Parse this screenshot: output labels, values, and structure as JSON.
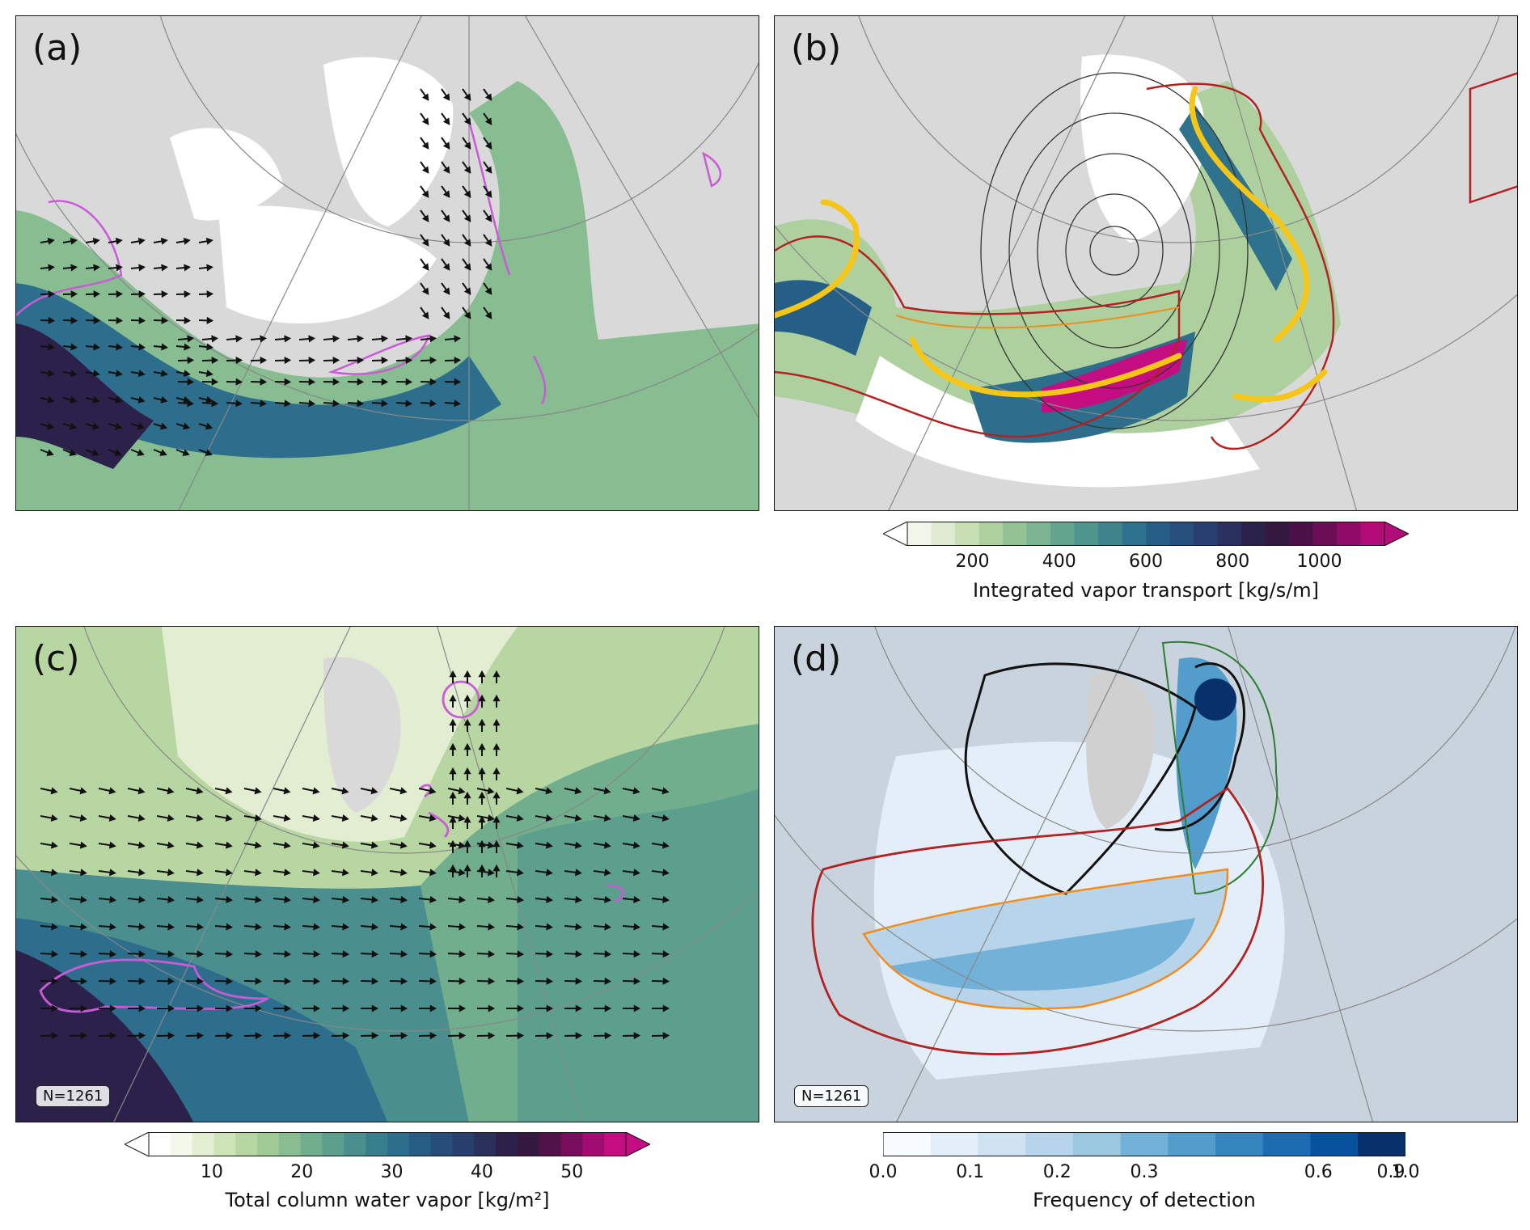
{
  "panels": [
    {
      "id": "a",
      "label": "(a)"
    },
    {
      "id": "b",
      "label": "(b)"
    },
    {
      "id": "c",
      "label": "(c)",
      "count": "N=1261"
    },
    {
      "id": "d",
      "label": "(d)",
      "count": "N=1261"
    }
  ],
  "colorbars": {
    "ivt": {
      "label": "Integrated vapor transport [kg/s/m]",
      "ticks": [
        "200",
        "400",
        "600",
        "800",
        "1000"
      ],
      "tick_values": [
        200,
        400,
        600,
        800,
        1000
      ],
      "range": [
        50,
        1150
      ],
      "extend": "both"
    },
    "tcwv": {
      "label": "Total column water vapor [kg/m²]",
      "ticks": [
        "10",
        "20",
        "30",
        "40",
        "50"
      ],
      "tick_values": [
        10,
        20,
        30,
        40,
        50
      ],
      "range": [
        3,
        56
      ],
      "extend": "both"
    },
    "freq": {
      "label": "Frequency of detection",
      "ticks": [
        "0.0",
        "0.1",
        "0.2",
        "0.3",
        "0.6",
        "0.9",
        "1.0"
      ],
      "tick_positions": [
        0,
        0.1667,
        0.3333,
        0.5,
        0.8333,
        0.9722,
        1.0
      ],
      "extend": "neither"
    }
  },
  "colors": {
    "ivt_scale": [
      "#f2f5ea",
      "#dfead0",
      "#c8dfb4",
      "#aed09e",
      "#93c294",
      "#7ab490",
      "#62a48e",
      "#4f948d",
      "#3f848d",
      "#2f728d",
      "#255f87",
      "#264f7d",
      "#293f6f",
      "#2c305f",
      "#2b224c",
      "#32173f",
      "#4a1148",
      "#6a0e55",
      "#8e0c67",
      "#b30c78"
    ],
    "tcwv_scale": [
      "#ffffff",
      "#f3f7ec",
      "#e2edd2",
      "#cfe3b8",
      "#b8d6a2",
      "#9fca94",
      "#87bd90",
      "#70ae8e",
      "#5c9f8d",
      "#4a8f8d",
      "#387f8d",
      "#2c6e8c",
      "#275d85",
      "#274d7a",
      "#283e6c",
      "#2a2f5c",
      "#2b214a",
      "#36173f",
      "#511149",
      "#780d5d",
      "#a10c70",
      "#c50d82"
    ],
    "freq_scale": [
      "#f7fbff",
      "#e3eef8",
      "#d0e1f2",
      "#b7d4ea",
      "#9ac8e0",
      "#73b2d8",
      "#529dcc",
      "#3585bf",
      "#1d6cb1",
      "#08519c",
      "#08306b"
    ],
    "ar_outline": "#b22222",
    "orange": "#f28c1c",
    "magenta": "#c85cd6",
    "yellow": "#f5c518",
    "green": "#2e7d32"
  }
}
